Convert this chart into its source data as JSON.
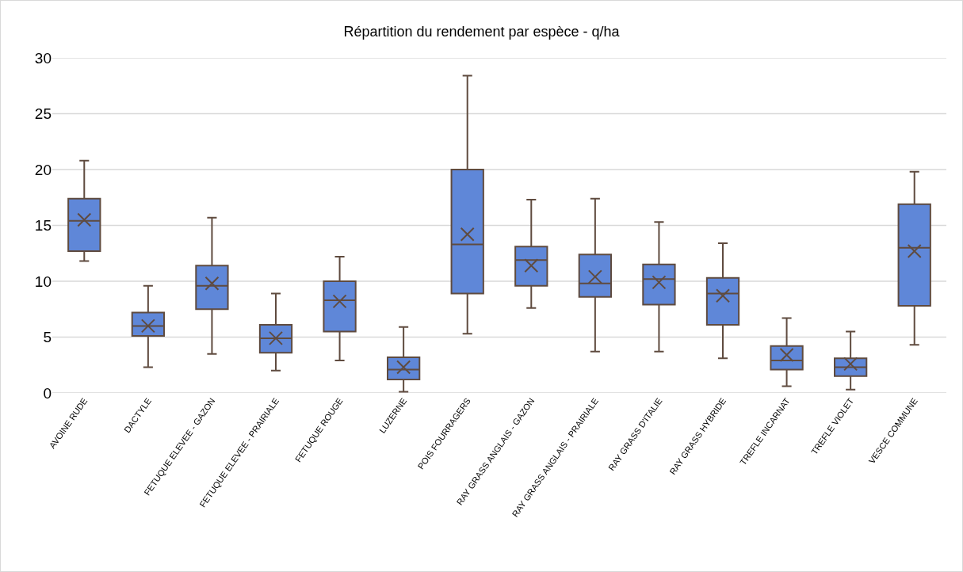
{
  "chart_data": {
    "type": "box",
    "title": "Répartition du rendement par espèce - q/ha",
    "categories": [
      "AVOINE RUDE",
      "DACTYLE",
      "FETUQUE ELEVEE - GAZON",
      "FETUQUE ELEVEE - PRAIRIALE",
      "FETUQUE ROUGE",
      "LUZERNE",
      "POIS FOURRAGERS",
      "RAY GRASS ANGLAIS - GAZON",
      "RAY GRASS ANGLAIS - PRAIRIALE",
      "RAY GRASS D'ITALIE",
      "RAY GRASS HYBRIDE",
      "TREFLE INCARNAT",
      "TREFLE VIOLET",
      "VESCE COMMUNE"
    ],
    "color": "#5f87d8",
    "boxes": [
      {
        "low": 11.8,
        "q1": 12.7,
        "median": 15.4,
        "q3": 17.4,
        "high": 20.8,
        "mean": 15.5
      },
      {
        "low": 2.3,
        "q1": 5.1,
        "median": 6.0,
        "q3": 7.2,
        "high": 9.6,
        "mean": 6.0
      },
      {
        "low": 3.5,
        "q1": 7.5,
        "median": 9.6,
        "q3": 11.4,
        "high": 15.7,
        "mean": 9.8
      },
      {
        "low": 2.0,
        "q1": 3.6,
        "median": 4.9,
        "q3": 6.1,
        "high": 8.9,
        "mean": 4.9
      },
      {
        "low": 2.9,
        "q1": 5.5,
        "median": 8.3,
        "q3": 10.0,
        "high": 12.2,
        "mean": 8.2
      },
      {
        "low": 0.1,
        "q1": 1.2,
        "median": 2.1,
        "q3": 3.2,
        "high": 5.9,
        "mean": 2.3
      },
      {
        "low": 5.3,
        "q1": 8.9,
        "median": 13.3,
        "q3": 20.0,
        "high": 28.4,
        "mean": 14.2
      },
      {
        "low": 7.6,
        "q1": 9.6,
        "median": 11.9,
        "q3": 13.1,
        "high": 17.3,
        "mean": 11.4
      },
      {
        "low": 3.7,
        "q1": 8.6,
        "median": 9.8,
        "q3": 12.4,
        "high": 17.4,
        "mean": 10.4
      },
      {
        "low": 3.7,
        "q1": 7.9,
        "median": 10.2,
        "q3": 11.5,
        "high": 15.3,
        "mean": 9.9
      },
      {
        "low": 3.1,
        "q1": 6.1,
        "median": 8.9,
        "q3": 10.3,
        "high": 13.4,
        "mean": 8.7
      },
      {
        "low": 0.6,
        "q1": 2.1,
        "median": 2.9,
        "q3": 4.2,
        "high": 6.7,
        "mean": 3.4
      },
      {
        "low": 0.3,
        "q1": 1.5,
        "median": 2.3,
        "q3": 3.1,
        "high": 5.5,
        "mean": 2.6
      },
      {
        "low": 4.3,
        "q1": 7.8,
        "median": 13.0,
        "q3": 16.9,
        "high": 19.8,
        "mean": 12.7
      }
    ],
    "ylim": [
      0,
      30
    ],
    "yticks": [
      0,
      5,
      10,
      15,
      20,
      25,
      30
    ],
    "grid": "y"
  }
}
